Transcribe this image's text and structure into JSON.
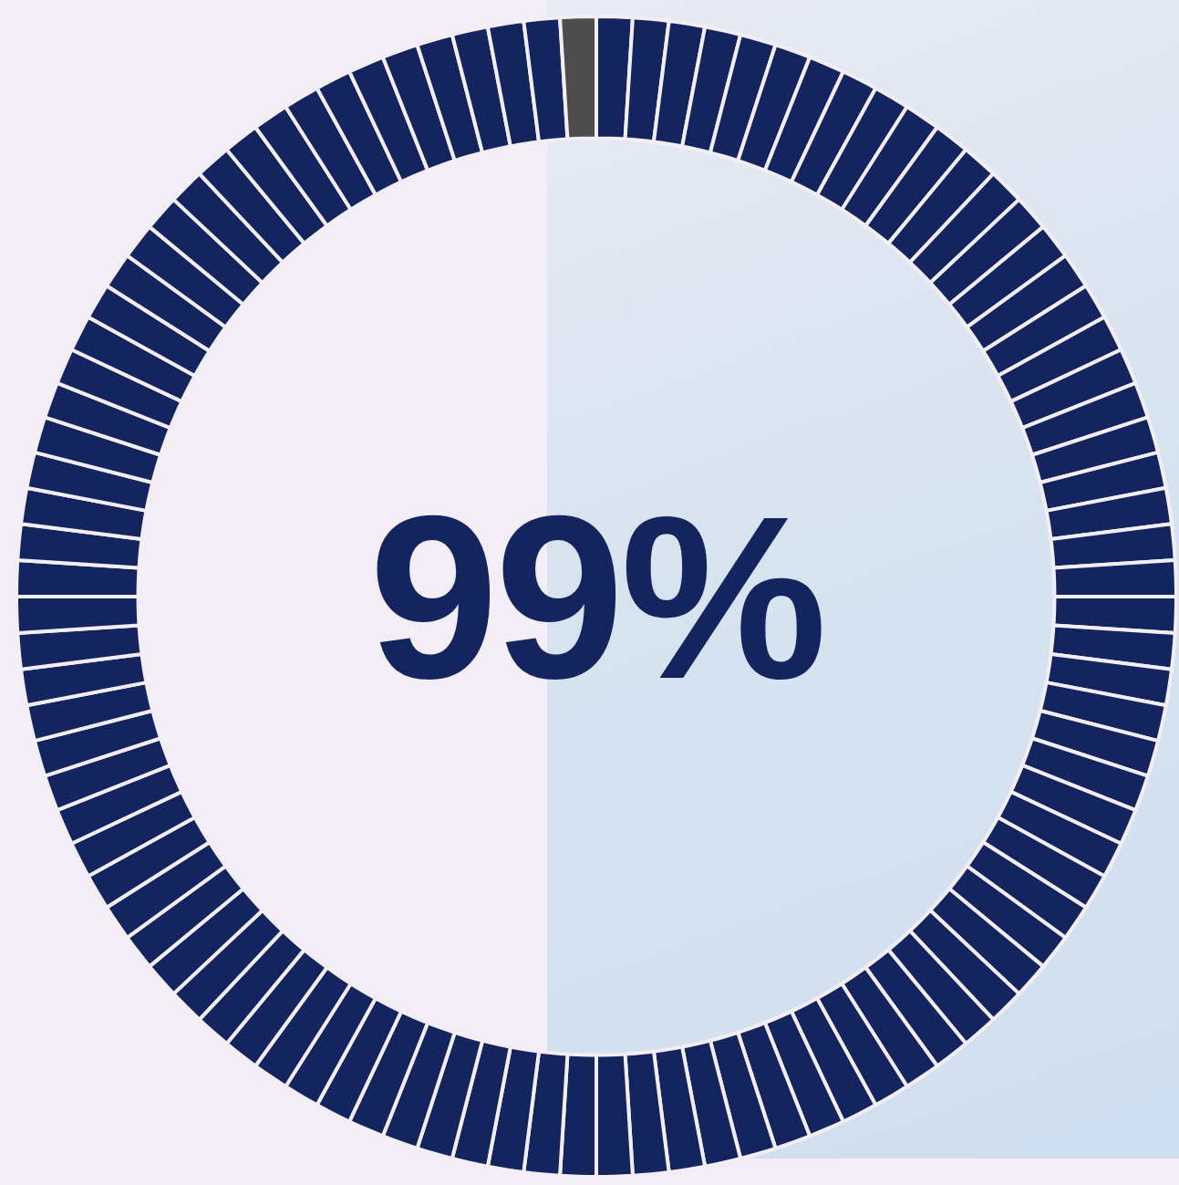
{
  "chart_data": {
    "type": "gauge",
    "values": [
      99
    ],
    "value_labels": [
      "99%"
    ],
    "range": [
      0,
      100
    ],
    "colors": [
      "#14245e",
      "#4d4d4d"
    ]
  }
}
